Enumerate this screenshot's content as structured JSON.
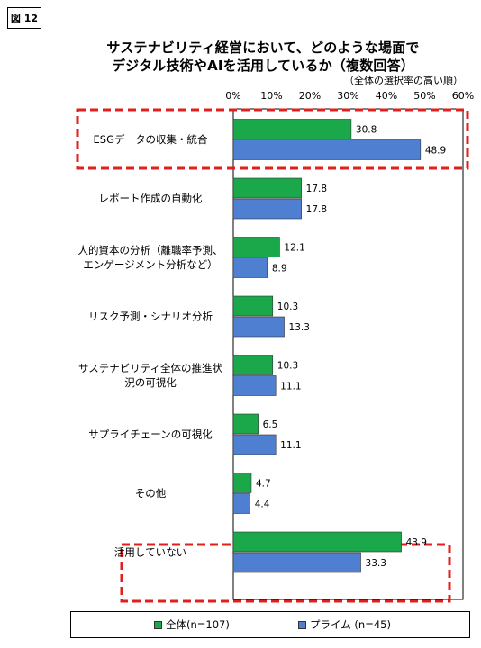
{
  "figure_label": "図 12",
  "chart_data": {
    "type": "bar",
    "orientation": "horizontal",
    "title": [
      "サステナビリティ経営において、どのような場面で",
      "デジタル技術やAIを活用しているか（複数回答）"
    ],
    "axis_note": "（全体の選択率の高い順）",
    "x_ticks": [
      "0%",
      "10%",
      "20%",
      "30%",
      "40%",
      "50%",
      "60%"
    ],
    "xlim": [
      0,
      60
    ],
    "categories": [
      [
        "ESGデータの収集・統合"
      ],
      [
        "レポート作成の自動化"
      ],
      [
        "人的資本の分析（離職率予測、",
        "エンゲージメント分析など）"
      ],
      [
        "リスク予測・シナリオ分析"
      ],
      [
        "サステナビリティ全体の推進状",
        "況の可視化"
      ],
      [
        "サプライチェーンの可視化"
      ],
      [
        "その他"
      ],
      [
        "活用していない"
      ]
    ],
    "series": [
      {
        "name": "全体(n=107)",
        "color": "#1aa84a",
        "values": [
          30.8,
          17.8,
          12.1,
          10.3,
          10.3,
          6.5,
          4.7,
          43.9
        ]
      },
      {
        "name": "プライム (n=45)",
        "color": "#4f7fd0",
        "values": [
          48.9,
          17.8,
          8.9,
          13.3,
          11.1,
          11.1,
          4.4,
          33.3
        ]
      }
    ],
    "highlighted_categories": [
      0,
      7
    ],
    "highlight_color": "#e0201c",
    "grid": false,
    "legend_position": "bottom"
  }
}
